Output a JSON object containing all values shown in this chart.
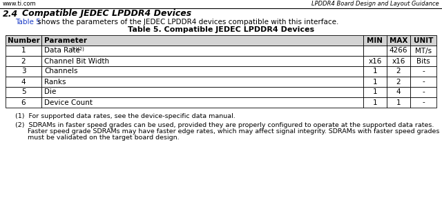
{
  "header_left": "www.ti.com",
  "header_right": "LPDDR4 Board Design and Layout Guidance",
  "section_num": "2.4",
  "section_title": "Compatible JEDEC LPDDR4 Devices",
  "intro_link": "Table 5",
  "intro_rest": " shows the parameters of the JEDEC LPDDR4 devices compatible with this interface.",
  "table_title": "Table 5. Compatible JEDEC LPDDR4 Devices",
  "col_headers": [
    "Number",
    "Parameter",
    "MIN",
    "MAX",
    "UNIT"
  ],
  "rows": [
    [
      "1",
      "Data Rate(1)(2)",
      "",
      "4266",
      "MT/s"
    ],
    [
      "2",
      "Channel Bit Width",
      "x16",
      "x16",
      "Bits"
    ],
    [
      "3",
      "Channels",
      "1",
      "2",
      "-"
    ],
    [
      "4",
      "Ranks",
      "1",
      "2",
      "-"
    ],
    [
      "5",
      "Die",
      "1",
      "4",
      "-"
    ],
    [
      "6",
      "Device Count",
      "1",
      "1",
      "-"
    ]
  ],
  "footnote1": "(1)  For supported data rates, see the device-specific data manual.",
  "footnote2_line1": "(2)  SDRAMs in faster speed grades can be used, provided they are properly configured to operate at the supported data rates.",
  "footnote2_line2": "      Faster speed grade SDRAMs may have faster edge rates, which may affect signal integrity. SDRAMs with faster speed grades",
  "footnote2_line3": "      must be validated on the target board design.",
  "header_bg": "#d3d3d3",
  "link_color": "#1a3cc8",
  "border_color": "#000000",
  "bg_color": "#ffffff"
}
